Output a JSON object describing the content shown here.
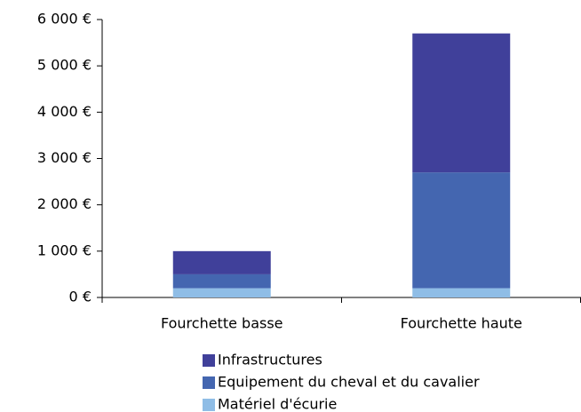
{
  "chart_data": {
    "type": "stacked_bar",
    "categories": [
      "Fourchette basse",
      "Fourchette haute"
    ],
    "series": [
      {
        "name": "Matériel d'écurie",
        "color": "#8fbde6",
        "values": [
          200,
          200
        ]
      },
      {
        "name": "Equipement du cheval et du cavalier",
        "color": "#4466b0",
        "values": [
          300,
          2500
        ]
      },
      {
        "name": "Infrastructures",
        "color": "#40409a",
        "values": [
          500,
          3000
        ]
      }
    ],
    "ylim": [
      0,
      6000
    ],
    "yticks": [
      {
        "value": 0,
        "label": "0 €"
      },
      {
        "value": 1000,
        "label": "1 000 €"
      },
      {
        "value": 2000,
        "label": "2 000 €"
      },
      {
        "value": 3000,
        "label": "3 000 €"
      },
      {
        "value": 4000,
        "label": "4 000 €"
      },
      {
        "value": 5000,
        "label": "5 000 €"
      },
      {
        "value": 6000,
        "label": "6 000 €"
      }
    ],
    "grid": false,
    "legend": "bottom"
  }
}
